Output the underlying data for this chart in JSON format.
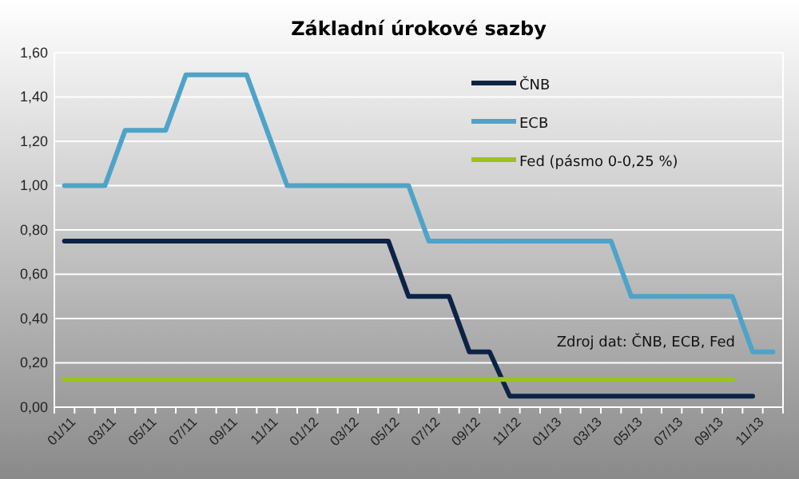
{
  "chart_data": {
    "type": "line",
    "title": "Základní úrokové sazby",
    "categories": [
      "01/11",
      null,
      "03/11",
      null,
      "05/11",
      null,
      "07/11",
      null,
      "09/11",
      null,
      "11/11",
      null,
      "01/12",
      null,
      "03/12",
      null,
      "05/12",
      null,
      "07/12",
      null,
      "09/12",
      null,
      "11/12",
      null,
      "01/13",
      null,
      "03/13",
      null,
      "05/13",
      null,
      "07/13",
      null,
      "09/13",
      null,
      "11/13",
      null
    ],
    "series": [
      {
        "name": "ČNB",
        "color": "#0d2346",
        "values": [
          0.75,
          0.75,
          0.75,
          0.75,
          0.75,
          0.75,
          0.75,
          0.75,
          0.75,
          0.75,
          0.75,
          0.75,
          0.75,
          0.75,
          0.75,
          0.75,
          0.75,
          0.5,
          0.5,
          0.5,
          0.25,
          0.25,
          0.05,
          0.05,
          0.05,
          0.05,
          0.05,
          0.05,
          0.05,
          0.05,
          0.05,
          0.05,
          0.05,
          0.05,
          0.05,
          null
        ]
      },
      {
        "name": "ECB",
        "color": "#4fa3c8",
        "values": [
          1,
          1,
          1,
          1.25,
          1.25,
          1.25,
          1.5,
          1.5,
          1.5,
          1.5,
          1.25,
          1,
          1,
          1,
          1,
          1,
          1,
          1,
          0.75,
          0.75,
          0.75,
          0.75,
          0.75,
          0.75,
          0.75,
          0.75,
          0.75,
          0.75,
          0.5,
          0.5,
          0.5,
          0.5,
          0.5,
          0.5,
          0.25,
          0.25
        ]
      },
      {
        "name": "Fed (pásmo 0-0,25 %)",
        "color": "#9bc31e",
        "values": [
          0.125,
          0.125,
          0.125,
          0.125,
          0.125,
          0.125,
          0.125,
          0.125,
          0.125,
          0.125,
          0.125,
          0.125,
          0.125,
          0.125,
          0.125,
          0.125,
          0.125,
          0.125,
          0.125,
          0.125,
          0.125,
          0.125,
          0.125,
          0.125,
          0.125,
          0.125,
          0.125,
          0.125,
          0.125,
          0.125,
          0.125,
          0.125,
          0.125,
          0.125,
          null,
          null
        ]
      }
    ],
    "ylim": [
      0,
      1.6
    ],
    "yticks": [
      {
        "value": 0,
        "label": "0,00"
      },
      {
        "value": 0.2,
        "label": "0,20"
      },
      {
        "value": 0.4,
        "label": "0,40"
      },
      {
        "value": 0.6,
        "label": "0,60"
      },
      {
        "value": 0.8,
        "label": "0,80"
      },
      {
        "value": 1,
        "label": "1,00"
      },
      {
        "value": 1.2,
        "label": "1,20"
      },
      {
        "value": 1.4,
        "label": "1,40"
      },
      {
        "value": 1.6,
        "label": "1,60"
      }
    ],
    "grid": "y",
    "legend": "top right",
    "marker": "none",
    "line_style": "solid",
    "annotations": [
      "Zdroj dat: ČNB, ECB, Fed"
    ]
  }
}
